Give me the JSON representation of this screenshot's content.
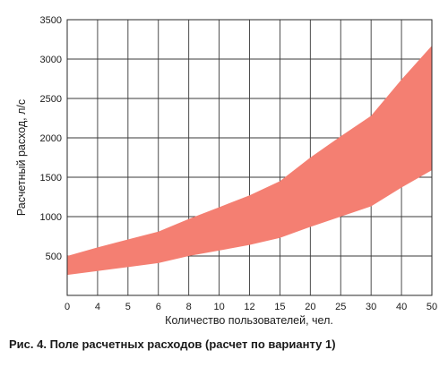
{
  "chart_data": {
    "type": "area",
    "xlabel": "Количество пользователей, чел.",
    "ylabel": "Расчетный расход, л/с",
    "categories": [
      "0",
      "4",
      "5",
      "6",
      "8",
      "10",
      "12",
      "15",
      "20",
      "25",
      "30",
      "40",
      "50"
    ],
    "ylim": [
      0,
      3500
    ],
    "yticks": [
      500,
      1000,
      1500,
      2000,
      2500,
      3000,
      3500
    ],
    "grid": true,
    "legend": "none",
    "series": [
      {
        "values": [
          500,
          610,
          710,
          810,
          970,
          1120,
          1270,
          1450,
          1750,
          2020,
          2280,
          2740,
          3170
        ]
      },
      {
        "values": [
          260,
          310,
          360,
          410,
          500,
          570,
          640,
          730,
          870,
          1000,
          1130,
          1370,
          1590
        ]
      }
    ],
    "fill_color": "#f47f72",
    "grid_color": "#3a3a3a"
  },
  "caption": "Рис. 4. Поле расчетных расходов (расчет по варианту 1)"
}
